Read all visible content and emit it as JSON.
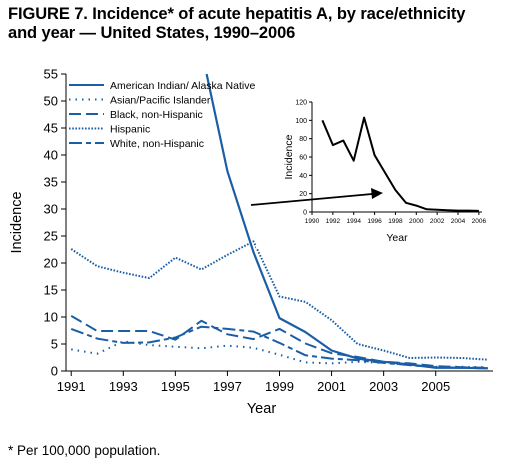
{
  "title_line1": "FIGURE 7. Incidence* of acute hepatitis A, by race/ethnicity",
  "title_line2": "and year — United States, 1990–2006",
  "footnote": "* Per 100,000 population.",
  "colors": {
    "series": "#1a5ea6",
    "inset": "#000000",
    "axis": "#000000"
  },
  "chart_data": [
    {
      "type": "line",
      "xlabel": "Year",
      "ylabel": "Incidence",
      "xlim": [
        1990.8,
        2007.2
      ],
      "ylim": [
        0,
        55
      ],
      "x_ticks": [
        1991,
        1993,
        1995,
        1997,
        1999,
        2001,
        2003,
        2005
      ],
      "y_ticks": [
        0,
        5,
        10,
        15,
        20,
        25,
        30,
        35,
        40,
        45,
        50,
        55
      ],
      "legend_position": "top-left",
      "series": [
        {
          "name": "American Indian/ Alaska Native",
          "style": "solid",
          "x": [
            1996.2,
            1997,
            1998,
            1999,
            2000,
            2001,
            2002,
            2003,
            2004,
            2005,
            2006,
            2007
          ],
          "values": [
            55,
            37,
            22,
            9.8,
            7.2,
            3.8,
            2.3,
            1.7,
            1.2,
            0.6,
            0.6,
            0.5
          ]
        },
        {
          "name": "Asian/Pacific Islander",
          "style": "dotted",
          "x": [
            1991,
            1992,
            1993,
            1994,
            1995,
            1996,
            1997,
            1998,
            1999,
            2000,
            2001,
            2002,
            2003,
            2004,
            2005,
            2006,
            2007
          ],
          "values": [
            4.0,
            3.2,
            5.5,
            4.8,
            4.5,
            4.2,
            4.7,
            4.3,
            3.0,
            1.6,
            1.4,
            1.7,
            1.5,
            1.1,
            0.8,
            0.8,
            0.7
          ]
        },
        {
          "name": "Black, non-Hispanic",
          "style": "dashed",
          "x": [
            1991,
            1992,
            1993,
            1994,
            1995,
            1996,
            1997,
            1998,
            1999,
            2000,
            2001,
            2002,
            2003,
            2004,
            2005,
            2006,
            2007
          ],
          "values": [
            10.2,
            7.4,
            7.4,
            7.4,
            5.8,
            9.3,
            6.8,
            5.9,
            7.8,
            5.1,
            3.3,
            2.6,
            1.7,
            1.4,
            0.9,
            0.7,
            0.6
          ]
        },
        {
          "name": "Hispanic",
          "style": "dense-dotted",
          "x": [
            1991,
            1992,
            1993,
            1994,
            1995,
            1996,
            1997,
            1998,
            1999,
            2000,
            2001,
            2002,
            2003,
            2004,
            2005,
            2006,
            2007
          ],
          "values": [
            22.6,
            19.4,
            18.2,
            17.2,
            21.0,
            18.8,
            21.5,
            24.0,
            13.8,
            12.8,
            9.4,
            5.0,
            3.8,
            2.4,
            2.5,
            2.4,
            2.1
          ]
        },
        {
          "name": "White, non-Hispanic",
          "style": "dash-dot",
          "x": [
            1991,
            1992,
            1993,
            1994,
            1995,
            1996,
            1997,
            1998,
            1999,
            2000,
            2001,
            2002,
            2003,
            2004,
            2005,
            2006,
            2007
          ],
          "values": [
            7.8,
            6.0,
            5.2,
            5.3,
            6.2,
            8.2,
            7.8,
            7.3,
            5.2,
            2.9,
            2.3,
            2.0,
            1.5,
            1.1,
            0.7,
            0.6,
            0.5
          ]
        }
      ]
    },
    {
      "type": "line",
      "subject": "American Indian/ Alaska Native",
      "xlabel": "Year",
      "ylabel": "Incidence",
      "xlim": [
        1990,
        2006.3
      ],
      "ylim": [
        0,
        120
      ],
      "x_ticks": [
        1990,
        1992,
        1994,
        1996,
        1998,
        2000,
        2002,
        2004,
        2006
      ],
      "y_ticks": [
        0,
        20,
        40,
        60,
        80,
        100,
        120
      ],
      "series": [
        {
          "style": "solid",
          "x": [
            1991,
            1992,
            1993,
            1994,
            1995,
            1996,
            1997,
            1998,
            1999,
            2000,
            2001,
            2002,
            2003,
            2004,
            2005,
            2006
          ],
          "values": [
            100,
            73,
            78,
            56,
            103,
            62,
            43,
            24,
            10,
            7,
            3,
            2.5,
            2,
            1.5,
            1.5,
            1.2
          ]
        }
      ]
    }
  ]
}
